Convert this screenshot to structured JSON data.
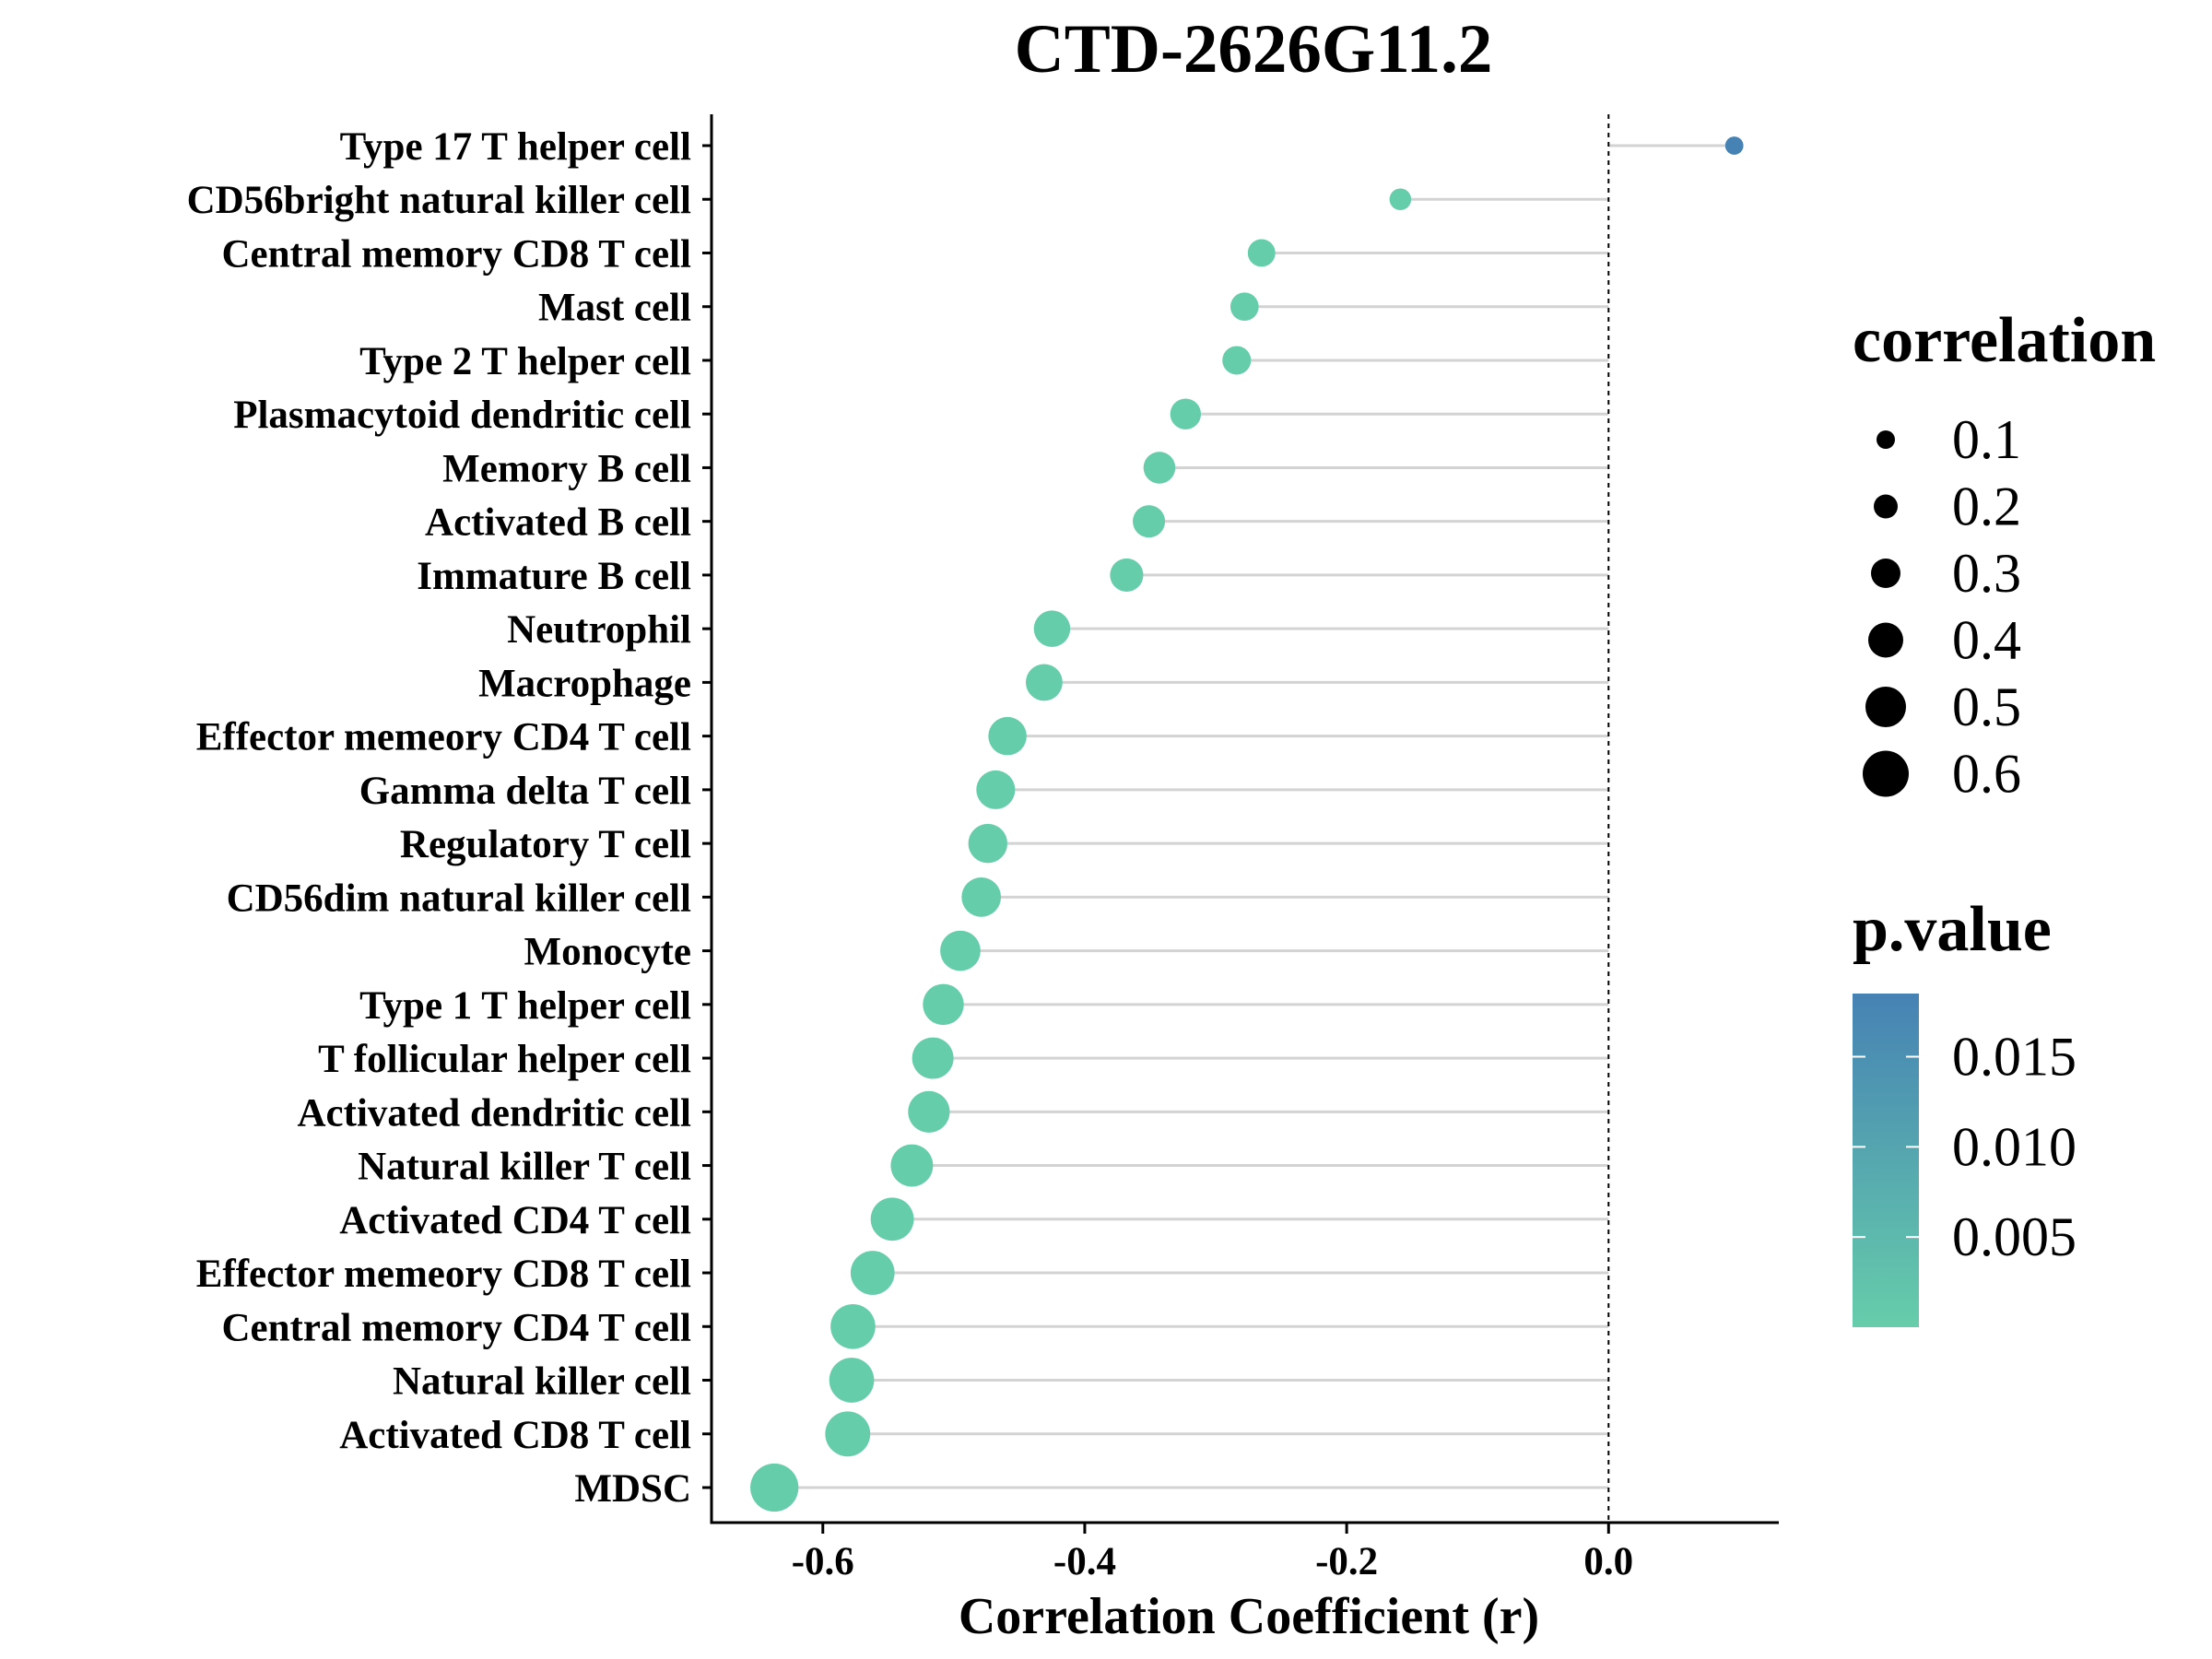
{
  "chart_data": {
    "type": "lollipop",
    "title": "CTD-2626G11.2",
    "xlabel": "Correlation Coefficient (r)",
    "ylabel": "",
    "xlim": [
      -0.685,
      0.13
    ],
    "xticks": [
      -0.6,
      -0.4,
      -0.2,
      0.0
    ],
    "xtick_labels": [
      "-0.6",
      "-0.4",
      "-0.2",
      "0.0"
    ],
    "reference_line": 0.0,
    "categories": [
      "Type 17 T helper cell",
      "CD56bright natural killer cell",
      "Central memory CD8 T cell",
      "Mast cell",
      "Type 2 T helper cell",
      "Plasmacytoid dendritic cell",
      "Memory B cell",
      "Activated B cell",
      "Immature  B cell",
      "Neutrophil",
      "Macrophage",
      "Effector memeory CD4 T cell",
      "Gamma delta T cell",
      "Regulatory T cell",
      "CD56dim natural killer cell",
      "Monocyte",
      "Type 1 T helper cell",
      "T follicular helper cell",
      "Activated dendritic cell",
      "Natural killer T cell",
      "Activated CD4 T cell",
      "Effector memeory CD8 T cell",
      "Central memory CD4 T cell",
      "Natural killer cell",
      "Activated CD8 T cell",
      "MDSC"
    ],
    "values": [
      0.096,
      -0.159,
      -0.265,
      -0.278,
      -0.284,
      -0.323,
      -0.343,
      -0.351,
      -0.368,
      -0.425,
      -0.431,
      -0.459,
      -0.468,
      -0.474,
      -0.479,
      -0.495,
      -0.508,
      -0.516,
      -0.519,
      -0.532,
      -0.547,
      -0.562,
      -0.577,
      -0.578,
      -0.581,
      -0.637
    ],
    "p_values": [
      0.0185,
      0.0001,
      0.0001,
      0.0001,
      0.0001,
      0.0001,
      0.0001,
      0.0001,
      0.0001,
      0.0001,
      0.0001,
      0.0001,
      0.0001,
      0.0001,
      0.0001,
      0.0001,
      0.0001,
      0.0001,
      0.0001,
      0.0001,
      0.0001,
      0.0001,
      0.0001,
      0.0001,
      0.0001,
      0.0001
    ],
    "size_legend": {
      "title": "correlation",
      "values": [
        0.1,
        0.2,
        0.3,
        0.4,
        0.5,
        0.6
      ],
      "labels": [
        "0.1",
        "0.2",
        "0.3",
        "0.4",
        "0.5",
        "0.6"
      ]
    },
    "color_legend": {
      "title": "p.value",
      "range": [
        0.0,
        0.0185
      ],
      "ticks": [
        0.005,
        0.01,
        0.015
      ],
      "labels": [
        "0.005",
        "0.010",
        "0.015"
      ],
      "low_color": "#66CDAA",
      "high_color": "#4682B4"
    },
    "stick_color": "#d3d3d3",
    "grid": false
  }
}
